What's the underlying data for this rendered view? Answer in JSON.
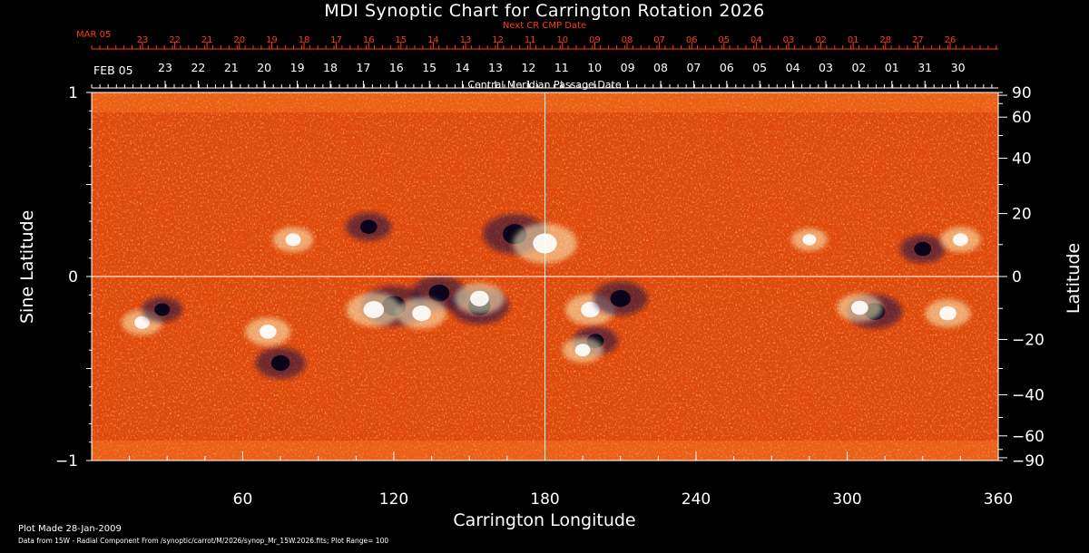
{
  "chart_data": {
    "type": "heatmap",
    "title": "MDI Synoptic Chart for Carrington Rotation 2026",
    "xlabel": "Carrington Longitude",
    "ylabel_left": "Sine Latitude",
    "ylabel_right": "Latitude",
    "xlim": [
      0,
      360
    ],
    "ylim": [
      -1,
      1
    ],
    "x_ticks": [
      60,
      120,
      180,
      240,
      300,
      360
    ],
    "y_ticks_left": [
      {
        "value": 1,
        "label": "1"
      },
      {
        "value": 0,
        "label": "0"
      },
      {
        "value": -1,
        "label": "−1"
      }
    ],
    "y_ticks_right": [
      {
        "deg": 90,
        "label": "90"
      },
      {
        "deg": 60,
        "label": "60"
      },
      {
        "deg": 40,
        "label": "40"
      },
      {
        "deg": 20,
        "label": "20"
      },
      {
        "deg": 0,
        "label": "0"
      },
      {
        "deg": -20,
        "label": "−20"
      },
      {
        "deg": -40,
        "label": "−40"
      },
      {
        "deg": -60,
        "label": "−60"
      },
      {
        "deg": -90,
        "label": "−90"
      }
    ],
    "cmp_axis": {
      "label": "Central Meridian Passage Date",
      "month_label": "FEB 05",
      "days": [
        "23",
        "22",
        "21",
        "20",
        "19",
        "18",
        "17",
        "16",
        "15",
        "14",
        "13",
        "12",
        "11",
        "10",
        "09",
        "08",
        "07",
        "06",
        "05",
        "04",
        "03",
        "02",
        "01",
        "31",
        "30"
      ]
    },
    "next_cmp_axis": {
      "label": "Next CR CMP Date",
      "month_label": "MAR 05",
      "days": [
        "23",
        "22",
        "21",
        "20",
        "19",
        "18",
        "17",
        "16",
        "15",
        "14",
        "13",
        "12",
        "11",
        "10",
        "09",
        "08",
        "07",
        "06",
        "05",
        "04",
        "03",
        "02",
        "01",
        "28",
        "27",
        "26"
      ]
    },
    "crosshair": {
      "longitude": 180,
      "sine_latitude": 0
    },
    "features": [
      {
        "lon": 168,
        "sinlat": 0.23,
        "polarity": "negative",
        "strength": 1.0
      },
      {
        "lon": 180,
        "sinlat": 0.18,
        "polarity": "positive",
        "strength": 1.0
      },
      {
        "lon": 110,
        "sinlat": 0.27,
        "polarity": "negative",
        "strength": 0.6
      },
      {
        "lon": 120,
        "sinlat": -0.16,
        "polarity": "negative",
        "strength": 1.0
      },
      {
        "lon": 112,
        "sinlat": -0.18,
        "polarity": "positive",
        "strength": 0.8
      },
      {
        "lon": 138,
        "sinlat": -0.09,
        "polarity": "negative",
        "strength": 0.8
      },
      {
        "lon": 131,
        "sinlat": -0.2,
        "polarity": "positive",
        "strength": 0.7
      },
      {
        "lon": 154,
        "sinlat": -0.16,
        "polarity": "negative",
        "strength": 0.9
      },
      {
        "lon": 154,
        "sinlat": -0.12,
        "polarity": "positive",
        "strength": 0.7
      },
      {
        "lon": 75,
        "sinlat": -0.47,
        "polarity": "negative",
        "strength": 0.7
      },
      {
        "lon": 70,
        "sinlat": -0.3,
        "polarity": "positive",
        "strength": 0.6
      },
      {
        "lon": 20,
        "sinlat": -0.25,
        "polarity": "positive",
        "strength": 0.5
      },
      {
        "lon": 28,
        "sinlat": -0.18,
        "polarity": "negative",
        "strength": 0.5
      },
      {
        "lon": 198,
        "sinlat": -0.18,
        "polarity": "positive",
        "strength": 0.7
      },
      {
        "lon": 210,
        "sinlat": -0.12,
        "polarity": "negative",
        "strength": 0.8
      },
      {
        "lon": 200,
        "sinlat": -0.35,
        "polarity": "negative",
        "strength": 0.6
      },
      {
        "lon": 195,
        "sinlat": -0.4,
        "polarity": "positive",
        "strength": 0.5
      },
      {
        "lon": 311,
        "sinlat": -0.19,
        "polarity": "negative",
        "strength": 0.8
      },
      {
        "lon": 305,
        "sinlat": -0.17,
        "polarity": "positive",
        "strength": 0.6
      },
      {
        "lon": 340,
        "sinlat": -0.2,
        "polarity": "positive",
        "strength": 0.6
      },
      {
        "lon": 330,
        "sinlat": 0.15,
        "polarity": "negative",
        "strength": 0.6
      },
      {
        "lon": 345,
        "sinlat": 0.2,
        "polarity": "positive",
        "strength": 0.5
      },
      {
        "lon": 285,
        "sinlat": 0.2,
        "polarity": "positive",
        "strength": 0.4
      },
      {
        "lon": 80,
        "sinlat": 0.2,
        "polarity": "positive",
        "strength": 0.5
      }
    ]
  },
  "footer": {
    "plot_made": "Plot Made 28-Jan-2009",
    "source": "Data from 15W - Radial Component From /synoptic/carrot/M/2026/synop_Mr_15W.2026.fits; Plot Range= 100"
  },
  "colors": {
    "background": "#000000",
    "field_base": "#e0480a",
    "positive": "#fff4c0",
    "negative": "#12104a",
    "next_date_color": "#ff3a1a"
  }
}
